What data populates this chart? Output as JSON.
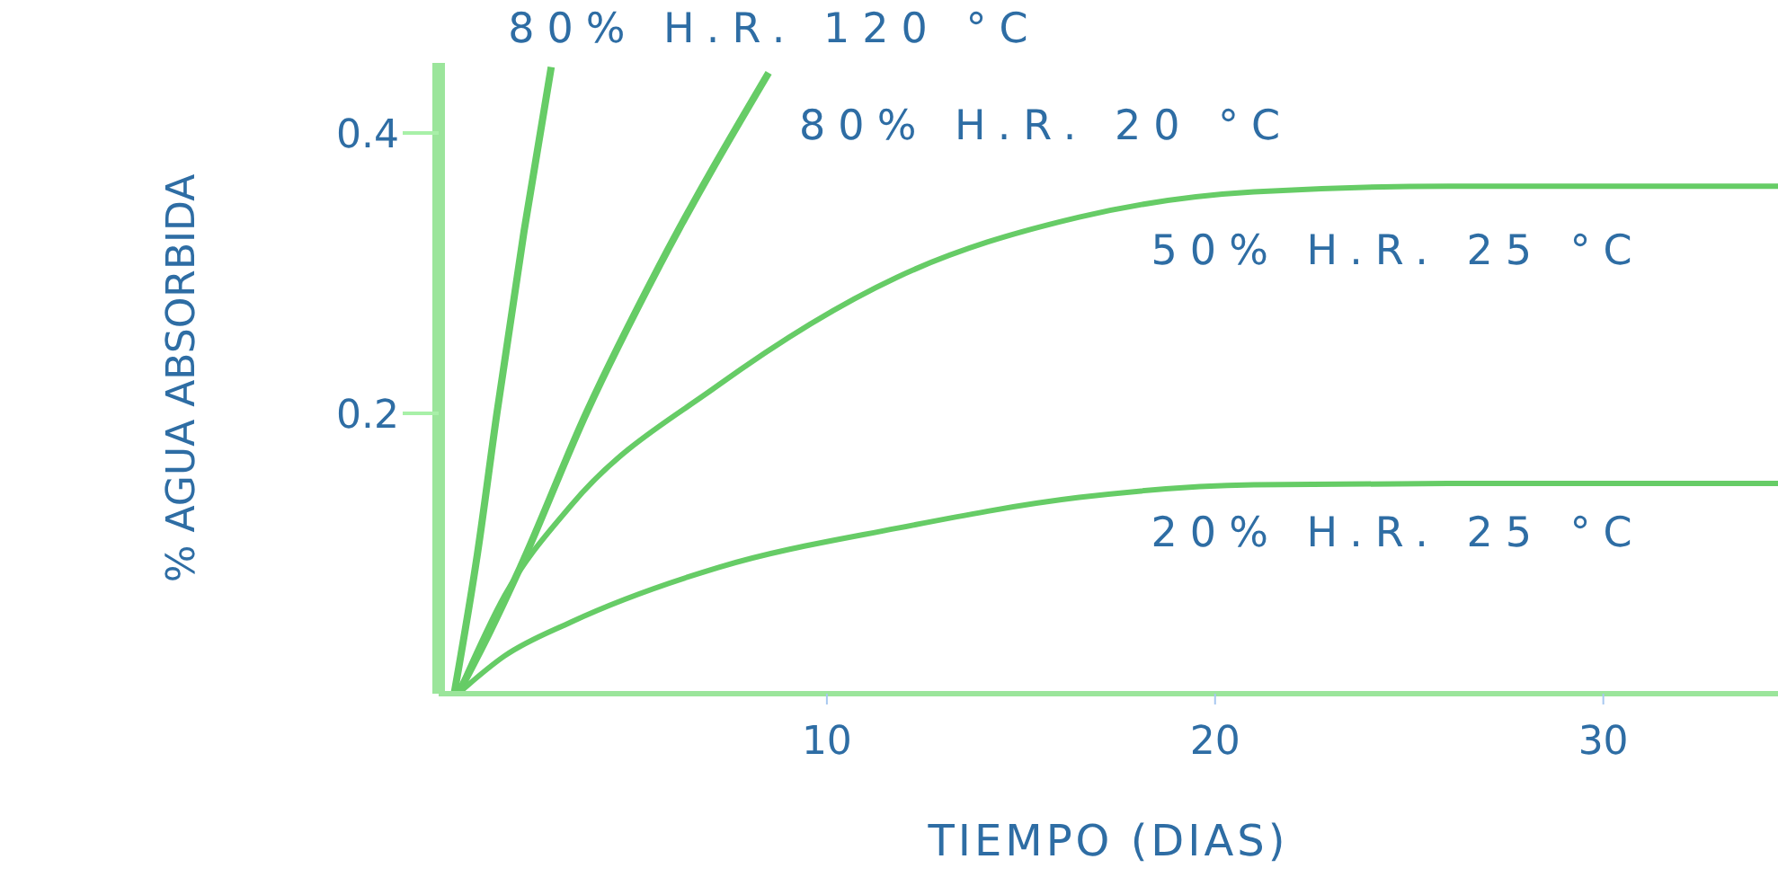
{
  "chart_data": {
    "type": "line",
    "xlabel": "TIEMPO (DIAS)",
    "ylabel": "% AGUA ABSORBIDA",
    "xlim": [
      0,
      34.5
    ],
    "xticks": [
      10,
      20,
      30
    ],
    "ylim": [
      0,
      0.45
    ],
    "yticks": [
      0.2,
      0.4
    ],
    "grid": false,
    "legend": false,
    "marker": "none",
    "line_style": "solid",
    "series": [
      {
        "name": "80% H.R. 120 °C",
        "color": "#66cc66",
        "x": [
          0.4,
          1,
          1.5,
          2.2,
          2.9
        ],
        "values": [
          0,
          0.1,
          0.2,
          0.33,
          0.447
        ]
      },
      {
        "name": "80% H.R. 20 °C",
        "color": "#66cc66",
        "x": [
          0.5,
          1.3,
          2.1,
          3.8,
          5.7,
          8.5
        ],
        "values": [
          0,
          0.043,
          0.09,
          0.2,
          0.306,
          0.443
        ]
      },
      {
        "name": "50% H.R. 25 °C",
        "color": "#66cc66",
        "x": [
          0.5,
          1.7,
          3.4,
          7.2,
          11.8,
          16.5,
          21,
          26,
          34.5
        ],
        "values": [
          0,
          0.07,
          0.134,
          0.22,
          0.297,
          0.34,
          0.358,
          0.362,
          0.362
        ]
      },
      {
        "name": "20% H.R. 25 °C",
        "color": "#66cc66",
        "x": [
          0.5,
          1.7,
          3.4,
          7.2,
          11.8,
          16.5,
          21,
          26,
          34.5
        ],
        "values": [
          0,
          0.027,
          0.051,
          0.09,
          0.118,
          0.14,
          0.149,
          0.15,
          0.15
        ]
      }
    ]
  }
}
